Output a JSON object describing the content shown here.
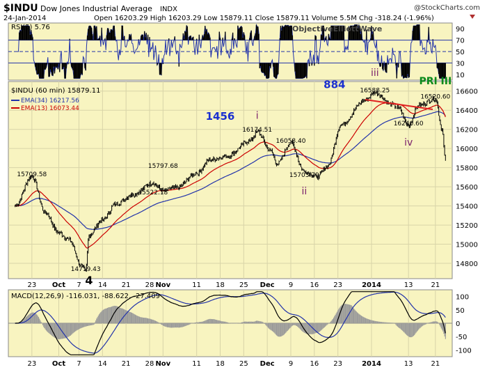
{
  "header": {
    "symbol": "$INDU",
    "name": "Dow Jones Industrial Average",
    "exchange": "INDX",
    "date": "24-Jan-2014",
    "quote": "Open 16203.29  High 16203.29  Low 15879.11  Close 15879.11  Volume 5.5M  Chg -318.24 (-1.96%)",
    "credit": "@StockCharts.com",
    "watermark": "ObjectiveElliottWave"
  },
  "colors": {
    "panel_bg": "#f8f4c0",
    "price": "#000000",
    "ema34": "#2233aa",
    "ema13": "#cc0000",
    "wave_label_purple": "#7a1f6b",
    "wave_label_blue": "#1a2fd0",
    "wave_label_green": "#0a8a1a",
    "trendline": "#e02020",
    "rsi_line": "#2233aa",
    "macd_line": "#000000",
    "signal_line": "#2233aa",
    "histogram": "#999999"
  },
  "chart_data": [
    {
      "type": "line",
      "title": "RSI(5) 5.76",
      "y_ticks": [
        "90",
        "70",
        "50",
        "30",
        "10"
      ],
      "ylim": [
        0,
        100
      ],
      "reference_lines": [
        70,
        50,
        30
      ]
    },
    {
      "type": "line",
      "title": "$INDU (60 min) 15879.11",
      "series": [
        {
          "name": "$INDU (60 min) 15879.11",
          "x": [
            "Sep 18",
            "Sep 23",
            "Sep 27",
            "Oct 1",
            "Oct 4",
            "Oct 8",
            "Oct 9",
            "Oct 10",
            "Oct 14",
            "Oct 18",
            "Oct 23",
            "Oct 29",
            "Nov 1",
            "Nov 5",
            "Nov 11",
            "Nov 15",
            "Nov 20",
            "Nov 27",
            "Nov 29",
            "Dec 3",
            "Dec 5",
            "Dec 9",
            "Dec 13",
            "Dec 17",
            "Dec 20",
            "Dec 24",
            "Dec 31",
            "Jan 3",
            "Jan 8",
            "Jan 10",
            "Jan 13",
            "Jan 16",
            "Jan 21",
            "Jan 23",
            "Jan 24"
          ],
          "values": [
            15400,
            15709.58,
            15330,
            15120,
            15050,
            14760,
            14719.43,
            15100,
            15250,
            15420,
            15520,
            15640,
            15560,
            15590,
            15740,
            15880,
            15920,
            16080,
            16174.51,
            15980,
            15840,
            16058.4,
            15760,
            15703.79,
            15820,
            16250,
            16500,
            16588.25,
            16460,
            16420,
            16240.6,
            16450,
            16520.6,
            16200,
            15879.11
          ]
        },
        {
          "name": "EMA(34) 16217.56"
        },
        {
          "name": "EMA(13) 16073.44"
        }
      ],
      "y_ticks": [
        "16600",
        "16400",
        "16200",
        "16000",
        "15800",
        "15600",
        "15400",
        "15200",
        "15000",
        "14800"
      ],
      "ylim": [
        14640,
        16700
      ],
      "x_ticks": [
        "23",
        "Oct",
        "7",
        "14",
        "21",
        "28",
        "Nov",
        "11",
        "18",
        "25",
        "Dec",
        "9",
        "16",
        "23",
        "2014",
        "13",
        "21"
      ],
      "annotations": [
        {
          "text": "15709.58",
          "x": "Sep 23",
          "y": 15709.58
        },
        {
          "text": "14719.43",
          "x": "Oct 9",
          "y": 14719.43
        },
        {
          "text": "4",
          "x": "Oct 10",
          "y": 14580
        },
        {
          "text": "15797.68",
          "x": "Nov 1",
          "y": 15797.68
        },
        {
          "text": "15522.18",
          "x": "Oct 29",
          "y": 15522.18
        },
        {
          "text": "1456",
          "x": "Nov 18",
          "y": 16300
        },
        {
          "text": "i",
          "x": "Nov 29",
          "y": 16310
        },
        {
          "text": "16174.51",
          "x": "Nov 29",
          "y": 16174.51
        },
        {
          "text": "16058.40",
          "x": "Dec 9",
          "y": 16058.4
        },
        {
          "text": "15703.79",
          "x": "Dec 13",
          "y": 15703.79
        },
        {
          "text": "ii",
          "x": "Dec 13",
          "y": 15520
        },
        {
          "text": "884",
          "x": "Dec 22",
          "y": 16630
        },
        {
          "text": "iii",
          "x": "Jan 3",
          "y": 16760
        },
        {
          "text": "16588.25",
          "x": "Jan 3",
          "y": 16588.25
        },
        {
          "text": "PRI III",
          "x": "Jan 21",
          "y": 16670
        },
        {
          "text": "16520.60",
          "x": "Jan 21",
          "y": 16520.6
        },
        {
          "text": "16240.60",
          "x": "Jan 13",
          "y": 16240.6
        },
        {
          "text": "iv",
          "x": "Jan 13",
          "y": 16030
        }
      ]
    },
    {
      "type": "line",
      "title": "MACD(12,26,9) -116.031, -88.622, -27.409",
      "y_ticks": [
        "100",
        "50",
        "0",
        "-50",
        "-100"
      ],
      "ylim": [
        -125,
        125
      ],
      "x_ticks": [
        "23",
        "Oct",
        "7",
        "14",
        "21",
        "28",
        "Nov",
        "11",
        "18",
        "25",
        "Dec",
        "9",
        "16",
        "23",
        "2014",
        "13",
        "21"
      ]
    }
  ]
}
